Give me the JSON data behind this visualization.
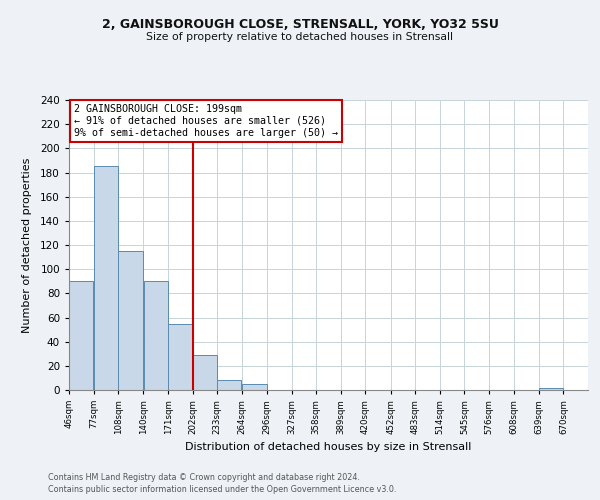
{
  "title_line1": "2, GAINSBOROUGH CLOSE, STRENSALL, YORK, YO32 5SU",
  "title_line2": "Size of property relative to detached houses in Strensall",
  "xlabel": "Distribution of detached houses by size in Strensall",
  "ylabel": "Number of detached properties",
  "bar_left_edges": [
    46,
    77,
    108,
    140,
    171,
    202,
    233,
    264,
    296,
    327,
    358,
    389,
    420,
    452,
    483,
    514,
    545,
    576,
    608,
    639
  ],
  "bar_widths": [
    31,
    31,
    32,
    31,
    31,
    31,
    31,
    32,
    31,
    31,
    31,
    31,
    32,
    31,
    31,
    31,
    31,
    32,
    31,
    31
  ],
  "bar_heights": [
    90,
    185,
    115,
    90,
    55,
    29,
    8,
    5,
    0,
    0,
    0,
    0,
    0,
    0,
    0,
    0,
    0,
    0,
    0,
    2
  ],
  "bar_color": "#c8d8e8",
  "bar_edge_color": "#5a8ab0",
  "tick_labels": [
    "46sqm",
    "77sqm",
    "108sqm",
    "140sqm",
    "171sqm",
    "202sqm",
    "233sqm",
    "264sqm",
    "296sqm",
    "327sqm",
    "358sqm",
    "389sqm",
    "420sqm",
    "452sqm",
    "483sqm",
    "514sqm",
    "545sqm",
    "576sqm",
    "608sqm",
    "639sqm",
    "670sqm"
  ],
  "xlim_left": 46,
  "xlim_right": 701,
  "ylim": [
    0,
    240
  ],
  "yticks": [
    0,
    20,
    40,
    60,
    80,
    100,
    120,
    140,
    160,
    180,
    200,
    220,
    240
  ],
  "property_line_x": 202,
  "property_line_color": "#cc0000",
  "annotation_title": "2 GAINSBOROUGH CLOSE: 199sqm",
  "annotation_line1": "← 91% of detached houses are smaller (526)",
  "annotation_line2": "9% of semi-detached houses are larger (50) →",
  "footnote1": "Contains HM Land Registry data © Crown copyright and database right 2024.",
  "footnote2": "Contains public sector information licensed under the Open Government Licence v3.0.",
  "background_color": "#eef2f6",
  "plot_background": "#ffffff",
  "grid_color": "#c8d4dc"
}
